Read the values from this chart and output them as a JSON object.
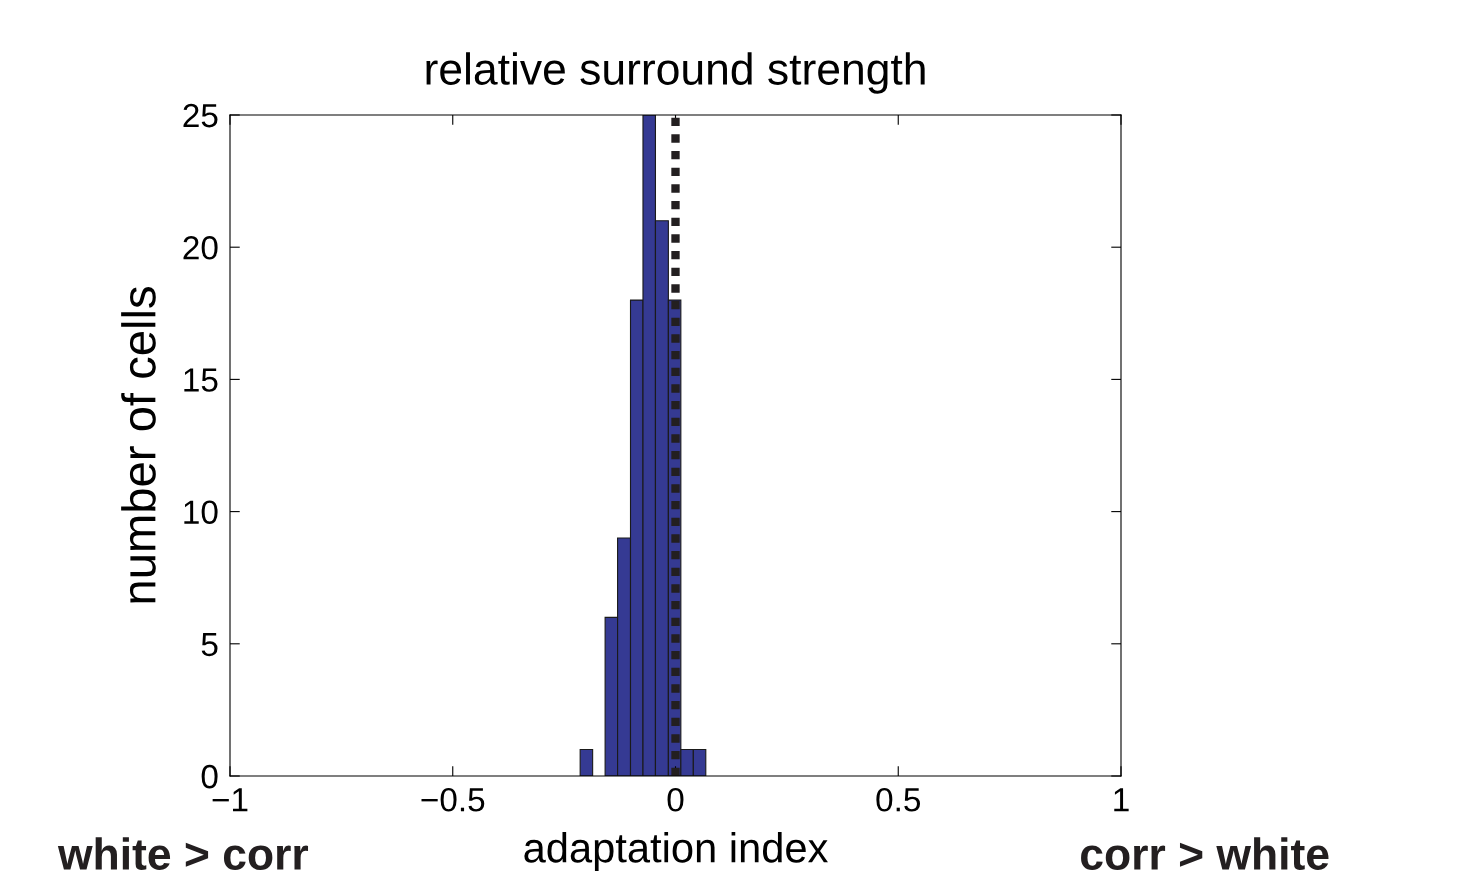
{
  "chart_data": {
    "type": "histogram",
    "title": "relative surround strength",
    "xlabel": "adaptation index",
    "ylabel": "number of cells",
    "bins": [
      -0.214,
      -0.186,
      -0.158,
      -0.13,
      -0.101,
      -0.073,
      -0.045,
      -0.016,
      0.012,
      0.04,
      0.068
    ],
    "values": [
      1,
      0,
      6,
      9,
      18,
      25,
      21,
      18,
      1,
      1
    ],
    "color": "#353a93",
    "xlim": [
      -1,
      1
    ],
    "xticks": [
      {
        "value": -1,
        "label": "−1"
      },
      {
        "value": -0.5,
        "label": "−0.5"
      },
      0,
      0.5,
      1
    ],
    "ylim": [
      0,
      25
    ],
    "yticks": [
      0,
      5,
      10,
      15,
      20,
      25
    ],
    "ref_lines": [
      {
        "axis": "x",
        "value": 0,
        "color": "#231f20",
        "line_style": "dotted"
      }
    ],
    "annotations": [
      "white > corr",
      "corr > white"
    ],
    "grid": false,
    "legend": false
  }
}
